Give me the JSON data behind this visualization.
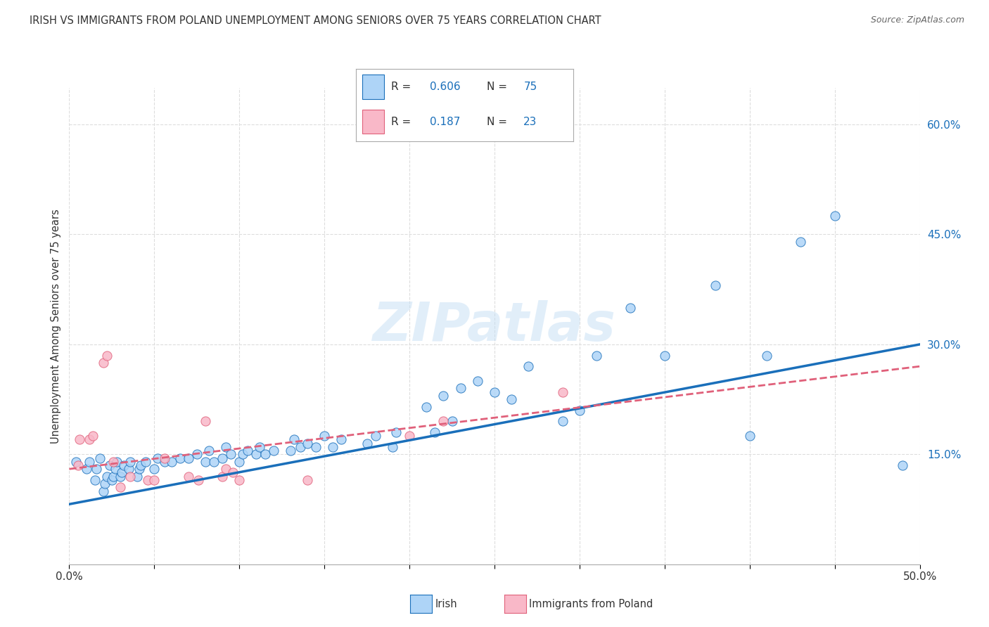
{
  "title": "IRISH VS IMMIGRANTS FROM POLAND UNEMPLOYMENT AMONG SENIORS OVER 75 YEARS CORRELATION CHART",
  "source": "Source: ZipAtlas.com",
  "ylabel": "Unemployment Among Seniors over 75 years",
  "xlim": [
    0.0,
    0.5
  ],
  "ylim": [
    0.0,
    0.65
  ],
  "ytick_positions": [
    0.15,
    0.3,
    0.45,
    0.6
  ],
  "ytick_labels": [
    "15.0%",
    "30.0%",
    "45.0%",
    "60.0%"
  ],
  "xtick_positions": [
    0.0,
    0.05,
    0.1,
    0.15,
    0.2,
    0.25,
    0.3,
    0.35,
    0.4,
    0.45,
    0.5
  ],
  "xtick_labels": [
    "0.0%",
    "",
    "",
    "",
    "",
    "",
    "",
    "",
    "",
    "",
    "50.0%"
  ],
  "irish_R": 0.606,
  "irish_N": 75,
  "poland_R": 0.187,
  "poland_N": 23,
  "irish_color": "#aed4f7",
  "ireland_line_color": "#1a6fba",
  "poland_color": "#f9b8c8",
  "poland_line_color": "#e0607a",
  "irish_x": [
    0.004,
    0.01,
    0.012,
    0.015,
    0.016,
    0.018,
    0.02,
    0.021,
    0.022,
    0.024,
    0.025,
    0.026,
    0.027,
    0.028,
    0.03,
    0.031,
    0.032,
    0.035,
    0.036,
    0.04,
    0.041,
    0.042,
    0.045,
    0.05,
    0.052,
    0.056,
    0.06,
    0.065,
    0.07,
    0.075,
    0.08,
    0.082,
    0.085,
    0.09,
    0.092,
    0.095,
    0.1,
    0.102,
    0.105,
    0.11,
    0.112,
    0.115,
    0.12,
    0.13,
    0.132,
    0.136,
    0.14,
    0.145,
    0.15,
    0.155,
    0.16,
    0.175,
    0.18,
    0.19,
    0.192,
    0.21,
    0.215,
    0.22,
    0.225,
    0.23,
    0.24,
    0.25,
    0.26,
    0.27,
    0.29,
    0.3,
    0.31,
    0.33,
    0.35,
    0.38,
    0.4,
    0.41,
    0.43,
    0.45,
    0.49
  ],
  "irish_y": [
    0.14,
    0.13,
    0.14,
    0.115,
    0.13,
    0.145,
    0.1,
    0.11,
    0.12,
    0.135,
    0.115,
    0.12,
    0.13,
    0.14,
    0.12,
    0.125,
    0.135,
    0.13,
    0.14,
    0.12,
    0.13,
    0.135,
    0.14,
    0.13,
    0.145,
    0.14,
    0.14,
    0.145,
    0.145,
    0.15,
    0.14,
    0.155,
    0.14,
    0.145,
    0.16,
    0.15,
    0.14,
    0.15,
    0.155,
    0.15,
    0.16,
    0.15,
    0.155,
    0.155,
    0.17,
    0.16,
    0.165,
    0.16,
    0.175,
    0.16,
    0.17,
    0.165,
    0.175,
    0.16,
    0.18,
    0.215,
    0.18,
    0.23,
    0.195,
    0.24,
    0.25,
    0.235,
    0.225,
    0.27,
    0.195,
    0.21,
    0.285,
    0.35,
    0.285,
    0.38,
    0.175,
    0.285,
    0.44,
    0.475,
    0.135
  ],
  "poland_x": [
    0.005,
    0.006,
    0.012,
    0.014,
    0.02,
    0.022,
    0.026,
    0.03,
    0.036,
    0.046,
    0.05,
    0.056,
    0.07,
    0.076,
    0.08,
    0.09,
    0.092,
    0.096,
    0.1,
    0.14,
    0.2,
    0.22,
    0.29
  ],
  "poland_y": [
    0.135,
    0.17,
    0.17,
    0.175,
    0.275,
    0.285,
    0.14,
    0.105,
    0.12,
    0.115,
    0.115,
    0.145,
    0.12,
    0.115,
    0.195,
    0.12,
    0.13,
    0.125,
    0.115,
    0.115,
    0.175,
    0.195,
    0.235
  ],
  "irish_line_x0": 0.0,
  "irish_line_y0": 0.082,
  "irish_line_x1": 0.5,
  "irish_line_y1": 0.3,
  "poland_line_x0": 0.0,
  "poland_line_y0": 0.13,
  "poland_line_x1": 0.5,
  "poland_line_y1": 0.27,
  "watermark_text": "ZIPatlas",
  "watermark_color": "#c5dff5",
  "background_color": "#ffffff",
  "grid_color": "#dddddd"
}
